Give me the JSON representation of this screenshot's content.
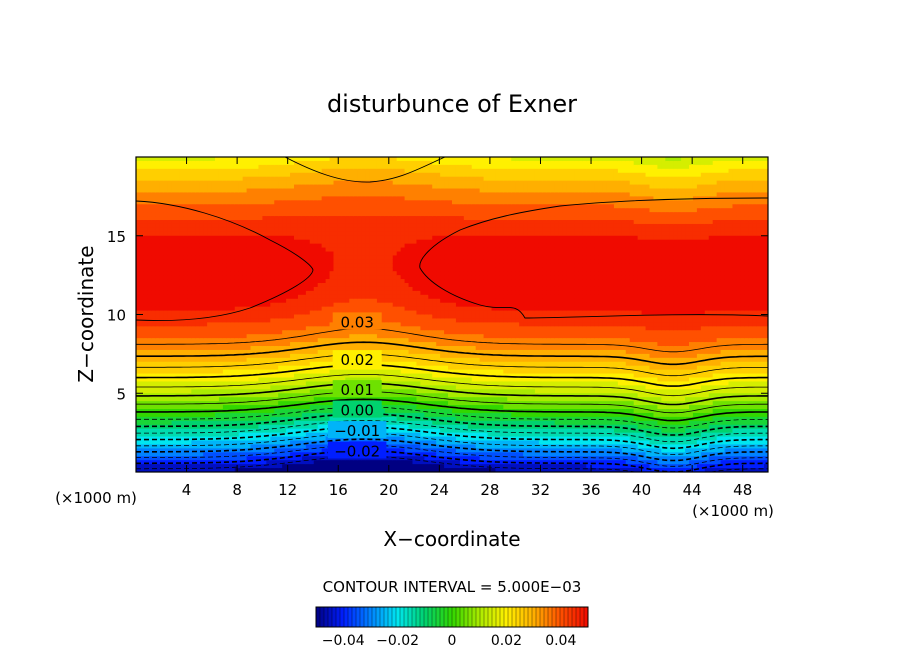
{
  "chart_data": {
    "type": "contour",
    "title": "disturbunce of Exner",
    "xlabel": "X−coordinate",
    "ylabel": "Z−coordinate",
    "x_unit": "(×1000 m)",
    "y_unit": "(×1000 m)",
    "xlim": [
      0,
      50
    ],
    "ylim": [
      0,
      20
    ],
    "x_ticks": [
      4,
      8,
      12,
      16,
      20,
      24,
      28,
      32,
      36,
      40,
      44,
      48
    ],
    "x_tick_labels": [
      "4",
      "8",
      "12",
      "16",
      "20",
      "24",
      "28",
      "32",
      "36",
      "40",
      "44",
      "48"
    ],
    "y_ticks": [
      5,
      10,
      15
    ],
    "y_tick_labels": [
      "5",
      "10",
      "15"
    ],
    "contour_interval_text": "CONTOUR INTERVAL = 5.000E−03",
    "contour_interval": 0.005,
    "contour_labels": [
      {
        "text": "0.03",
        "x": 17.5,
        "z": 9.5
      },
      {
        "text": "0.02",
        "x": 17.5,
        "z": 7.1
      },
      {
        "text": "0.01",
        "x": 17.5,
        "z": 5.2
      },
      {
        "text": "0.00",
        "x": 17.5,
        "z": 3.9
      },
      {
        "text": "−0.01",
        "x": 17.5,
        "z": 2.6
      },
      {
        "text": "−0.02",
        "x": 17.5,
        "z": 1.3
      }
    ],
    "colorbar": {
      "range": [
        -0.05,
        0.05
      ],
      "tick_values": [
        -0.04,
        -0.02,
        0,
        0.02,
        0.04
      ],
      "tick_labels": [
        "−0.04",
        "−0.02",
        "0",
        "0.02",
        "0.04"
      ]
    }
  }
}
